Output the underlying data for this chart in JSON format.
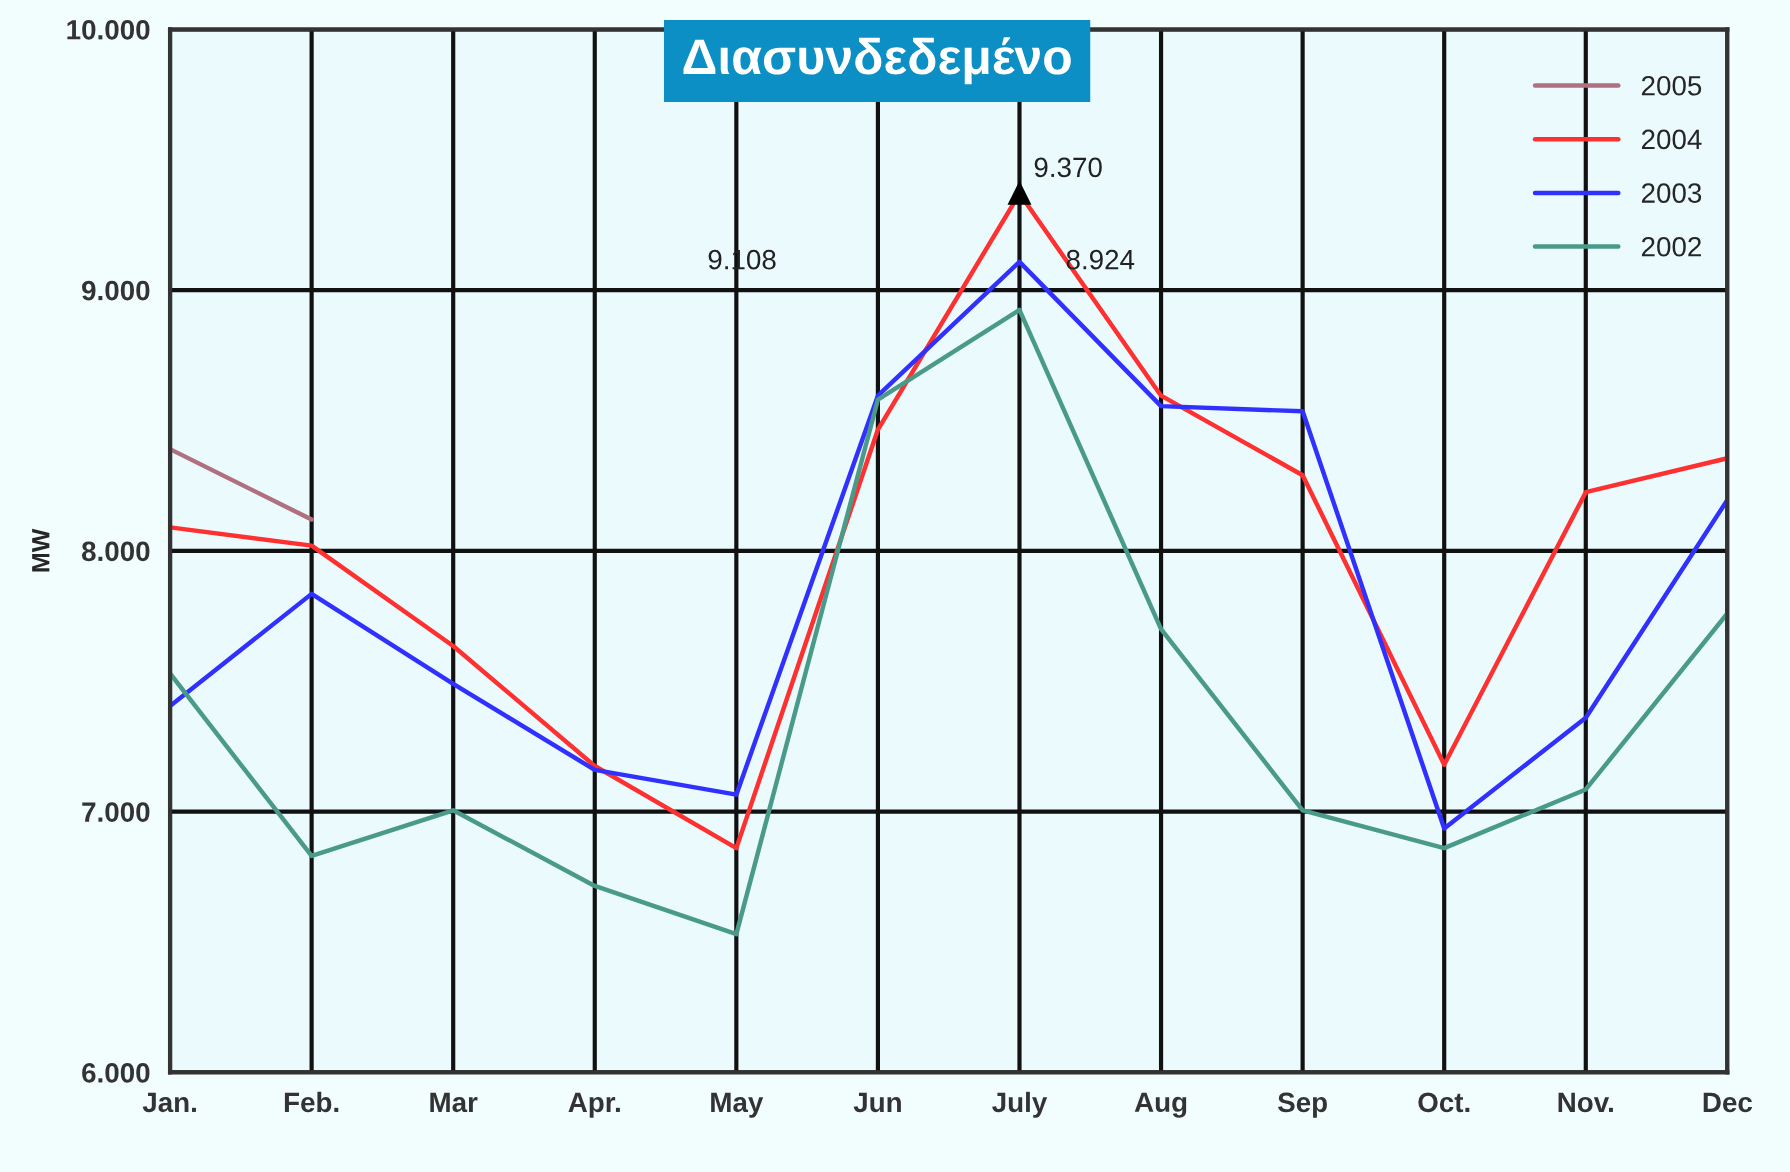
{
  "chart_data": {
    "type": "line",
    "title": "Διασυνδεδεμένο",
    "ylabel": "MW",
    "categories": [
      "Jan.",
      "Feb.",
      "Mar",
      "Apr.",
      "May",
      "Jun",
      "July",
      "Aug",
      "Sep",
      "Oct.",
      "Nov.",
      "Dec"
    ],
    "series": [
      {
        "name": "2005",
        "color": "#b07080",
        "values": [
          8390,
          8120,
          null,
          null,
          null,
          null,
          null,
          null,
          null,
          null,
          null,
          null
        ]
      },
      {
        "name": "2004",
        "color": "#ff3030",
        "values": [
          8090,
          8020,
          7635,
          7175,
          6860,
          8465,
          9370,
          8595,
          8290,
          7180,
          8225,
          8355
        ]
      },
      {
        "name": "2003",
        "color": "#3030ff",
        "values": [
          7405,
          7835,
          7490,
          7160,
          7065,
          8595,
          9108,
          8555,
          8535,
          6935,
          7360,
          8195
        ]
      },
      {
        "name": "2002",
        "color": "#4a9a8a",
        "values": [
          7530,
          6830,
          7005,
          6715,
          6530,
          8580,
          8924,
          7700,
          7005,
          6860,
          7085,
          7760
        ]
      }
    ],
    "annotations": [
      {
        "text": "9.370",
        "x": "July",
        "y": 9370
      },
      "9.108",
      "8.924"
    ],
    "ylim": [
      6000,
      10000
    ],
    "yticks": [
      {
        "value": 6000,
        "label": "6.000"
      },
      {
        "value": 7000,
        "label": "7.000"
      },
      {
        "value": 8000,
        "label": "8.000"
      },
      {
        "value": 9000,
        "label": "9.000"
      },
      {
        "value": 10000,
        "label": "10.000"
      }
    ],
    "grid": true,
    "legend": "top right",
    "marker": "none",
    "line_style": "solid"
  }
}
